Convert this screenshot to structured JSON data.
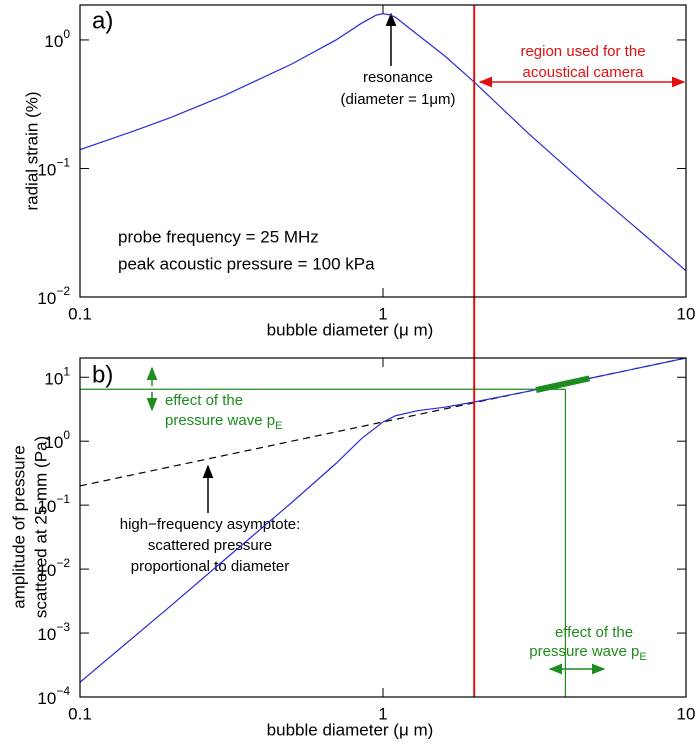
{
  "chart_data": [
    {
      "type": "line",
      "panel_label": "a)",
      "x_label": "bubble diameter (μ m)",
      "y_label": "radial strain (%)",
      "xscale": "log",
      "yscale": "log",
      "xlim": [
        0.1,
        10
      ],
      "ylim": [
        0.01,
        1.87
      ],
      "xticks": [
        0.1,
        1,
        10
      ],
      "yticks": [
        {
          "value": 0.01,
          "label": "10",
          "exponent": "−2"
        },
        {
          "value": 0.1,
          "label": "10",
          "exponent": "−1"
        },
        {
          "value": 1,
          "label": "10",
          "exponent": "0"
        }
      ],
      "x": [
        0.1,
        0.15,
        0.2,
        0.3,
        0.5,
        0.7,
        0.85,
        0.95,
        1,
        1.05,
        1.1,
        1.3,
        1.6,
        2,
        3,
        5,
        7,
        10
      ],
      "series": [
        {
          "color": "#2b2bd6",
          "values": [
            0.14,
            0.195,
            0.25,
            0.37,
            0.65,
            1.0,
            1.35,
            1.56,
            1.6,
            1.57,
            1.5,
            1.1,
            0.75,
            0.47,
            0.19,
            0.065,
            0.033,
            0.016
          ]
        }
      ],
      "vlines": [
        {
          "value": 2,
          "color": "#e01010"
        }
      ],
      "annotations": [
        "resonance",
        "(diameter = 1μm)",
        "region used for the",
        "acoustical camera",
        "probe frequency = 25 MHz",
        "peak acoustic pressure = 100 kPa"
      ]
    },
    {
      "type": "line",
      "panel_label": "b)",
      "x_label": "bubble diameter (μ m)",
      "y_label": [
        "amplitude of pressure",
        "scattered at 25 mm (Pa)"
      ],
      "xscale": "log",
      "yscale": "log",
      "xlim": [
        0.1,
        10
      ],
      "ylim": [
        0.0001,
        20
      ],
      "xticks": [
        0.1,
        1,
        10
      ],
      "yticks": [
        {
          "value": 0.0001,
          "label": "10",
          "exponent": "−4"
        },
        {
          "value": 0.001,
          "label": "10",
          "exponent": "−3"
        },
        {
          "value": 0.01,
          "label": "10",
          "exponent": "−2"
        },
        {
          "value": 0.1,
          "label": "10",
          "exponent": "−1"
        },
        {
          "value": 1,
          "label": "10",
          "exponent": "0"
        },
        {
          "value": 10,
          "label": "10",
          "exponent": "1"
        }
      ],
      "x": [
        0.1,
        0.2,
        0.3,
        0.5,
        0.7,
        0.85,
        1,
        1.1,
        1.3,
        1.6,
        2,
        3,
        5,
        7,
        10
      ],
      "series": [
        {
          "color": "#000000",
          "dash": true,
          "values": [
            0.2,
            0.4,
            0.6,
            1,
            1.4,
            1.7,
            2,
            2.2,
            2.6,
            3.2,
            4,
            6,
            10,
            14,
            20
          ]
        },
        {
          "color": "#2b2bd6",
          "values": [
            0.00017,
            0.0027,
            0.014,
            0.11,
            0.45,
            1.1,
            2.0,
            2.5,
            3.0,
            3.4,
            4.1,
            6.0,
            10,
            14,
            20
          ]
        },
        {
          "color": "#1e8c1e",
          "linewidth": 6,
          "x": [
            3.2,
            4.8
          ],
          "values": [
            6.3,
            9.6
          ]
        }
      ],
      "vlines": [
        {
          "value": 2,
          "color": "#e01010"
        }
      ],
      "guide": {
        "x": 4,
        "y": 6.5,
        "color": "#1e8c1e"
      },
      "annotations": [
        "effect of the",
        "pressure wave p",
        "E",
        "high−frequency asymptote:",
        "scattered pressure",
        "proportional to diameter",
        "effect of the",
        "pressure wave p",
        "E"
      ]
    }
  ]
}
